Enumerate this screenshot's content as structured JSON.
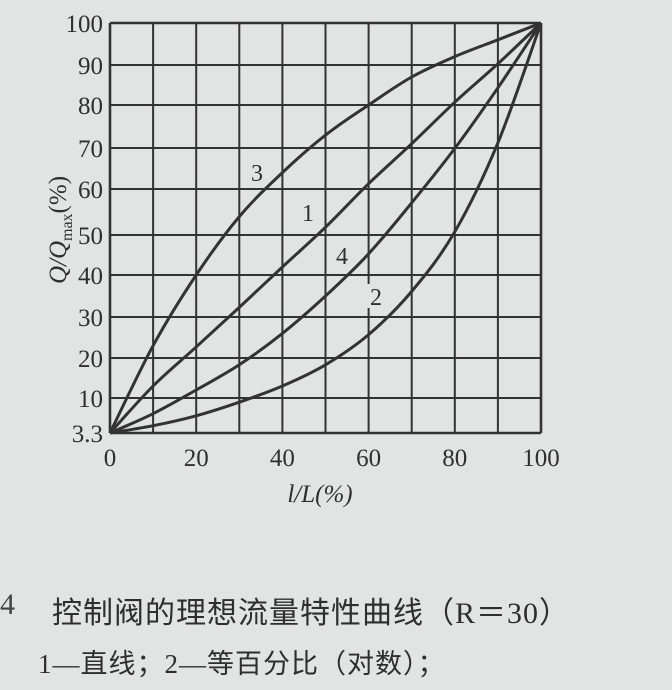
{
  "chart_data": {
    "type": "line",
    "xlabel": "l/L(%)",
    "ylabel": {
      "main": "Q/Q",
      "subscript": "max",
      "suffix": "(%)"
    },
    "xlim": [
      0,
      100
    ],
    "ylim": [
      3.3,
      100
    ],
    "x_ticks": [
      "0",
      "20",
      "40",
      "60",
      "80",
      "100"
    ],
    "y_ticks": [
      "3.3",
      "10",
      "20",
      "30",
      "40",
      "50",
      "60",
      "70",
      "80",
      "90",
      "100"
    ],
    "grid": true,
    "x": [
      0,
      10,
      20,
      30,
      40,
      50,
      60,
      70,
      80,
      90,
      100
    ],
    "series": [
      {
        "name": "1",
        "values": [
          3.3,
          13.0,
          22.7,
          32.3,
          42.0,
          51.7,
          61.3,
          71.0,
          80.7,
          90.3,
          100
        ]
      },
      {
        "name": "2",
        "values": [
          3.3,
          4.7,
          6.6,
          9.2,
          13.0,
          18.3,
          25.7,
          36.1,
          50.7,
          71.2,
          100
        ]
      },
      {
        "name": "3",
        "values": [
          3.3,
          23,
          40,
          54,
          64,
          73,
          80,
          87,
          92,
          96,
          100
        ]
      },
      {
        "name": "4",
        "values": [
          3.3,
          7.0,
          12.0,
          18.3,
          26.0,
          35.0,
          45.3,
          57.0,
          69.9,
          84.3,
          100
        ]
      }
    ],
    "line_color": "#333333"
  },
  "caption": {
    "figure_number_fragment": "4",
    "title": "控制阀的理想流量特性曲线（R＝30）",
    "legend_line": "1—直线；2—等百分比（对数）；"
  }
}
